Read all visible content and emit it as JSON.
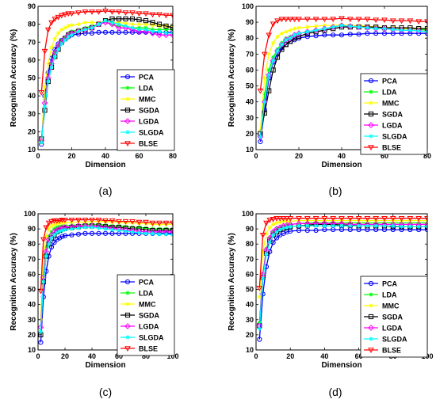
{
  "series_styles": [
    {
      "name": "PCA",
      "color": "#0000ff",
      "marker": "circle"
    },
    {
      "name": "LDA",
      "color": "#00ff00",
      "marker": "star"
    },
    {
      "name": "MMC",
      "color": "#ffff00",
      "marker": "star"
    },
    {
      "name": "SGDA",
      "color": "#000000",
      "marker": "square"
    },
    {
      "name": "LGDA",
      "color": "#ff00ff",
      "marker": "diamond"
    },
    {
      "name": "SLGDA",
      "color": "#00ffff",
      "marker": "star"
    },
    {
      "name": "BLSE",
      "color": "#ff0000",
      "marker": "triangle-down"
    }
  ],
  "chart_data": [
    {
      "type": "line",
      "panel_label": "(a)",
      "xlabel": "Dimension",
      "ylabel": "Recognition Accuracy (%)",
      "xlim": [
        0,
        80
      ],
      "ylim": [
        10,
        90
      ],
      "xticks": [
        0,
        20,
        40,
        60,
        80
      ],
      "yticks": [
        10,
        20,
        30,
        40,
        50,
        60,
        70,
        80,
        90
      ],
      "legend": "bottom-right",
      "x": [
        2,
        4,
        6,
        8,
        10,
        12,
        14,
        16,
        18,
        20,
        24,
        28,
        32,
        36,
        40,
        44,
        48,
        52,
        56,
        60,
        64,
        68,
        72,
        76,
        80
      ],
      "series": [
        {
          "name": "PCA",
          "values": [
            13,
            40,
            53,
            61,
            66,
            69,
            71,
            72,
            73,
            74,
            74.5,
            75,
            75,
            75.5,
            75.5,
            75.5,
            75.5,
            75.5,
            75.5,
            75.5,
            75.5,
            75.5,
            75.5,
            75.5,
            75.5
          ]
        },
        {
          "name": "LDA",
          "values": [
            14,
            38,
            50,
            58,
            64,
            68,
            71,
            73,
            75,
            76,
            77,
            78,
            79,
            80,
            82,
            80,
            79,
            79,
            78,
            78,
            78,
            77,
            77,
            77,
            77
          ]
        },
        {
          "name": "MMC",
          "values": [
            15,
            45,
            58,
            67,
            72,
            75,
            77,
            78,
            79,
            79.5,
            80,
            81,
            81,
            81,
            81.5,
            81,
            81,
            80.5,
            80,
            80,
            80,
            79.5,
            79,
            79,
            79
          ]
        },
        {
          "name": "SGDA",
          "values": [
            16,
            32,
            48,
            56,
            62,
            66,
            70,
            72,
            74,
            75,
            76,
            77,
            78,
            80,
            82,
            83,
            83,
            83,
            83,
            82.5,
            82,
            81,
            80,
            79,
            78
          ]
        },
        {
          "name": "LGDA",
          "values": [
            15,
            36,
            50,
            58,
            64,
            68,
            70,
            72,
            74,
            75,
            76,
            77,
            78,
            80,
            81,
            80,
            78,
            78,
            77,
            76,
            76,
            75,
            74,
            74,
            74
          ]
        },
        {
          "name": "SLGDA",
          "values": [
            14,
            34,
            48,
            56,
            62,
            66,
            69,
            71,
            73,
            74,
            76,
            77,
            78,
            80,
            82,
            81,
            80,
            79,
            78,
            77,
            77,
            76,
            76,
            75,
            75
          ]
        },
        {
          "name": "BLSE",
          "values": [
            42,
            65,
            77,
            81,
            83,
            84,
            85,
            85.5,
            86,
            86,
            86.5,
            87,
            87,
            87,
            87.5,
            87,
            87,
            86.5,
            86.5,
            86,
            86,
            85.5,
            85.5,
            85,
            85
          ]
        }
      ]
    },
    {
      "type": "line",
      "panel_label": "(b)",
      "xlabel": "Dimension",
      "ylabel": "Recognition Accuracy (%)",
      "xlim": [
        0,
        80
      ],
      "ylim": [
        10,
        100
      ],
      "xticks": [
        0,
        20,
        40,
        60,
        80
      ],
      "yticks": [
        10,
        20,
        30,
        40,
        50,
        60,
        70,
        80,
        90,
        100
      ],
      "legend": "bottom-right",
      "x": [
        2,
        4,
        6,
        8,
        10,
        12,
        14,
        16,
        18,
        20,
        24,
        28,
        32,
        36,
        40,
        44,
        48,
        52,
        56,
        60,
        64,
        68,
        72,
        76,
        80
      ],
      "series": [
        {
          "name": "PCA",
          "values": [
            15,
            35,
            55,
            65,
            70,
            74,
            76,
            78,
            79,
            80,
            81,
            81.5,
            82,
            82,
            82,
            82.5,
            82.5,
            83,
            83,
            83,
            83,
            83,
            83,
            83,
            83
          ]
        },
        {
          "name": "LDA",
          "values": [
            18,
            45,
            60,
            68,
            73,
            77,
            80,
            81,
            82,
            83,
            84,
            85,
            86,
            87,
            88,
            88,
            87.5,
            87,
            87,
            87,
            86.5,
            86,
            86,
            85.5,
            85
          ]
        },
        {
          "name": "MMC",
          "values": [
            22,
            55,
            70,
            77,
            81,
            83,
            84,
            85,
            86,
            86.5,
            87,
            87.5,
            88,
            88,
            88.5,
            88,
            88,
            87.5,
            87,
            87,
            86.5,
            86,
            86,
            86,
            86
          ]
        },
        {
          "name": "SGDA",
          "values": [
            20,
            33,
            47,
            60,
            68,
            73,
            76,
            78,
            80,
            81,
            83,
            84,
            85,
            86,
            87,
            87,
            87,
            87,
            87,
            86.5,
            86.5,
            86.5,
            86.5,
            86,
            86
          ]
        },
        {
          "name": "LGDA",
          "values": [
            18,
            40,
            57,
            66,
            72,
            76,
            79,
            80,
            82,
            83,
            84,
            85,
            86,
            87,
            88,
            87.5,
            87,
            86.5,
            86,
            86,
            85.5,
            85,
            85,
            84.5,
            84
          ]
        },
        {
          "name": "SLGDA",
          "values": [
            18,
            40,
            57,
            66,
            72,
            76,
            79,
            80,
            82,
            83,
            84,
            85,
            86,
            87,
            88,
            87.5,
            87,
            86.5,
            86,
            86,
            85.5,
            85,
            85,
            84.5,
            84
          ]
        },
        {
          "name": "BLSE",
          "values": [
            47,
            70,
            82,
            89,
            91,
            92,
            92,
            92,
            92,
            92,
            92,
            92,
            92,
            92,
            92.5,
            92,
            92,
            92,
            91.5,
            91.5,
            91,
            91,
            91,
            90.5,
            90.5
          ]
        }
      ]
    },
    {
      "type": "line",
      "panel_label": "(c)",
      "xlabel": "Dimension",
      "ylabel": "Recognition Accuracy (%)",
      "xlim": [
        0,
        100
      ],
      "ylim": [
        10,
        100
      ],
      "xticks": [
        0,
        20,
        40,
        60,
        80,
        100
      ],
      "yticks": [
        10,
        20,
        30,
        40,
        50,
        60,
        70,
        80,
        90,
        100
      ],
      "legend": "bottom-right",
      "x": [
        2,
        4,
        6,
        8,
        10,
        12,
        14,
        16,
        18,
        20,
        25,
        30,
        35,
        40,
        45,
        50,
        55,
        60,
        65,
        70,
        75,
        80,
        85,
        90,
        95,
        100
      ],
      "series": [
        {
          "name": "PCA",
          "values": [
            15,
            45,
            62,
            72,
            78,
            81,
            83,
            84,
            85,
            85.5,
            86,
            86.5,
            87,
            87,
            87,
            87,
            87,
            87,
            87,
            87,
            87,
            87,
            87,
            87,
            87,
            87
          ]
        },
        {
          "name": "LDA",
          "values": [
            22,
            60,
            78,
            85,
            88,
            90,
            91,
            91.5,
            92,
            92,
            92.5,
            92.5,
            93,
            93,
            93,
            92.5,
            92,
            92,
            91.5,
            91,
            91,
            90.5,
            90,
            90,
            90,
            90
          ]
        },
        {
          "name": "MMC",
          "values": [
            30,
            72,
            85,
            90,
            92,
            93,
            93.5,
            94,
            94,
            94,
            94.5,
            94.5,
            94.5,
            95,
            95,
            95,
            94.5,
            94.5,
            94,
            94,
            93.5,
            93.5,
            93,
            93,
            93,
            93
          ]
        },
        {
          "name": "SGDA",
          "values": [
            20,
            55,
            72,
            80,
            84,
            86,
            88,
            89,
            90,
            90.5,
            91,
            91.5,
            92,
            92,
            92,
            91.5,
            91,
            91,
            90.5,
            90,
            90,
            89.5,
            89,
            89,
            89,
            89
          ]
        },
        {
          "name": "LGDA",
          "values": [
            25,
            58,
            75,
            83,
            86,
            88,
            89,
            90,
            90.5,
            91,
            91.5,
            92,
            92,
            92,
            91.5,
            91,
            90.5,
            90,
            89.5,
            89,
            88.5,
            88,
            88,
            88,
            88,
            88
          ]
        },
        {
          "name": "SLGDA",
          "values": [
            22,
            55,
            72,
            80,
            84,
            86,
            87.5,
            88.5,
            89,
            89.5,
            90,
            90.5,
            91,
            91,
            90.5,
            90,
            89.5,
            89,
            88.5,
            88,
            87.5,
            87,
            87,
            86.5,
            86.5,
            86
          ]
        },
        {
          "name": "BLSE",
          "values": [
            49,
            83,
            91,
            94,
            95,
            95.5,
            95.5,
            95.5,
            96,
            96,
            96,
            96,
            96,
            96,
            96,
            95.5,
            95.5,
            95,
            95,
            95,
            94.5,
            94.5,
            94,
            94,
            94,
            94
          ]
        }
      ]
    },
    {
      "type": "line",
      "panel_label": "(d)",
      "xlabel": "Dimension",
      "ylabel": "Recognition Accuracy (%)",
      "xlim": [
        0,
        100
      ],
      "ylim": [
        10,
        100
      ],
      "xticks": [
        0,
        20,
        40,
        60,
        80,
        100
      ],
      "yticks": [
        10,
        20,
        30,
        40,
        50,
        60,
        70,
        80,
        90,
        100
      ],
      "legend": "bottom-right",
      "x": [
        2,
        4,
        6,
        8,
        10,
        12,
        14,
        16,
        18,
        20,
        25,
        30,
        35,
        40,
        45,
        50,
        55,
        60,
        65,
        70,
        75,
        80,
        85,
        90,
        95,
        100
      ],
      "series": [
        {
          "name": "PCA",
          "values": [
            17,
            47,
            65,
            75,
            81,
            84,
            86,
            87,
            88,
            88.5,
            89,
            89,
            89,
            89.5,
            89.5,
            89.5,
            89.5,
            89.5,
            89.5,
            89.5,
            89.5,
            89.5,
            89.5,
            89.5,
            89.5,
            89.5
          ]
        },
        {
          "name": "LDA",
          "values": [
            28,
            60,
            77,
            84,
            88,
            90,
            91,
            92,
            92.5,
            93,
            93.5,
            94,
            94,
            94,
            94,
            94,
            94,
            94,
            94,
            94,
            94,
            94,
            94,
            94,
            94,
            94
          ]
        },
        {
          "name": "MMC",
          "values": [
            45,
            75,
            87,
            91,
            93,
            94,
            94.5,
            95,
            95,
            95,
            95.5,
            95.5,
            95.5,
            95.5,
            95.5,
            95.5,
            95.5,
            95.5,
            95.5,
            95.5,
            95.5,
            95.5,
            95.5,
            95.5,
            95.5,
            95.5
          ]
        },
        {
          "name": "SGDA",
          "values": [
            26,
            58,
            74,
            82,
            86,
            88,
            89.5,
            90.5,
            91,
            91.5,
            92,
            92.5,
            93,
            93,
            93,
            92.5,
            92.5,
            92,
            92,
            92,
            92,
            91.5,
            91.5,
            91.5,
            91.5,
            91.5
          ]
        },
        {
          "name": "LGDA",
          "values": [
            26,
            60,
            76,
            84,
            88,
            90,
            91,
            92,
            92.5,
            93,
            93.5,
            93.5,
            93.5,
            93.5,
            93.5,
            93.5,
            93,
            93,
            93,
            93,
            93,
            93,
            93,
            93,
            93,
            93
          ]
        },
        {
          "name": "SLGDA",
          "values": [
            24,
            57,
            73,
            81,
            86,
            88,
            89.5,
            90.5,
            91,
            91.5,
            92,
            92,
            92,
            92,
            92,
            92,
            92,
            92,
            92,
            92,
            92,
            92,
            91.5,
            91.5,
            91.5,
            91.5
          ]
        },
        {
          "name": "BLSE",
          "values": [
            51,
            86,
            94,
            96,
            96.5,
            97,
            97,
            97,
            97,
            97,
            97,
            97,
            97,
            97,
            97,
            97,
            97,
            97,
            97,
            97,
            97,
            97,
            97,
            97,
            97,
            97
          ]
        }
      ]
    }
  ]
}
